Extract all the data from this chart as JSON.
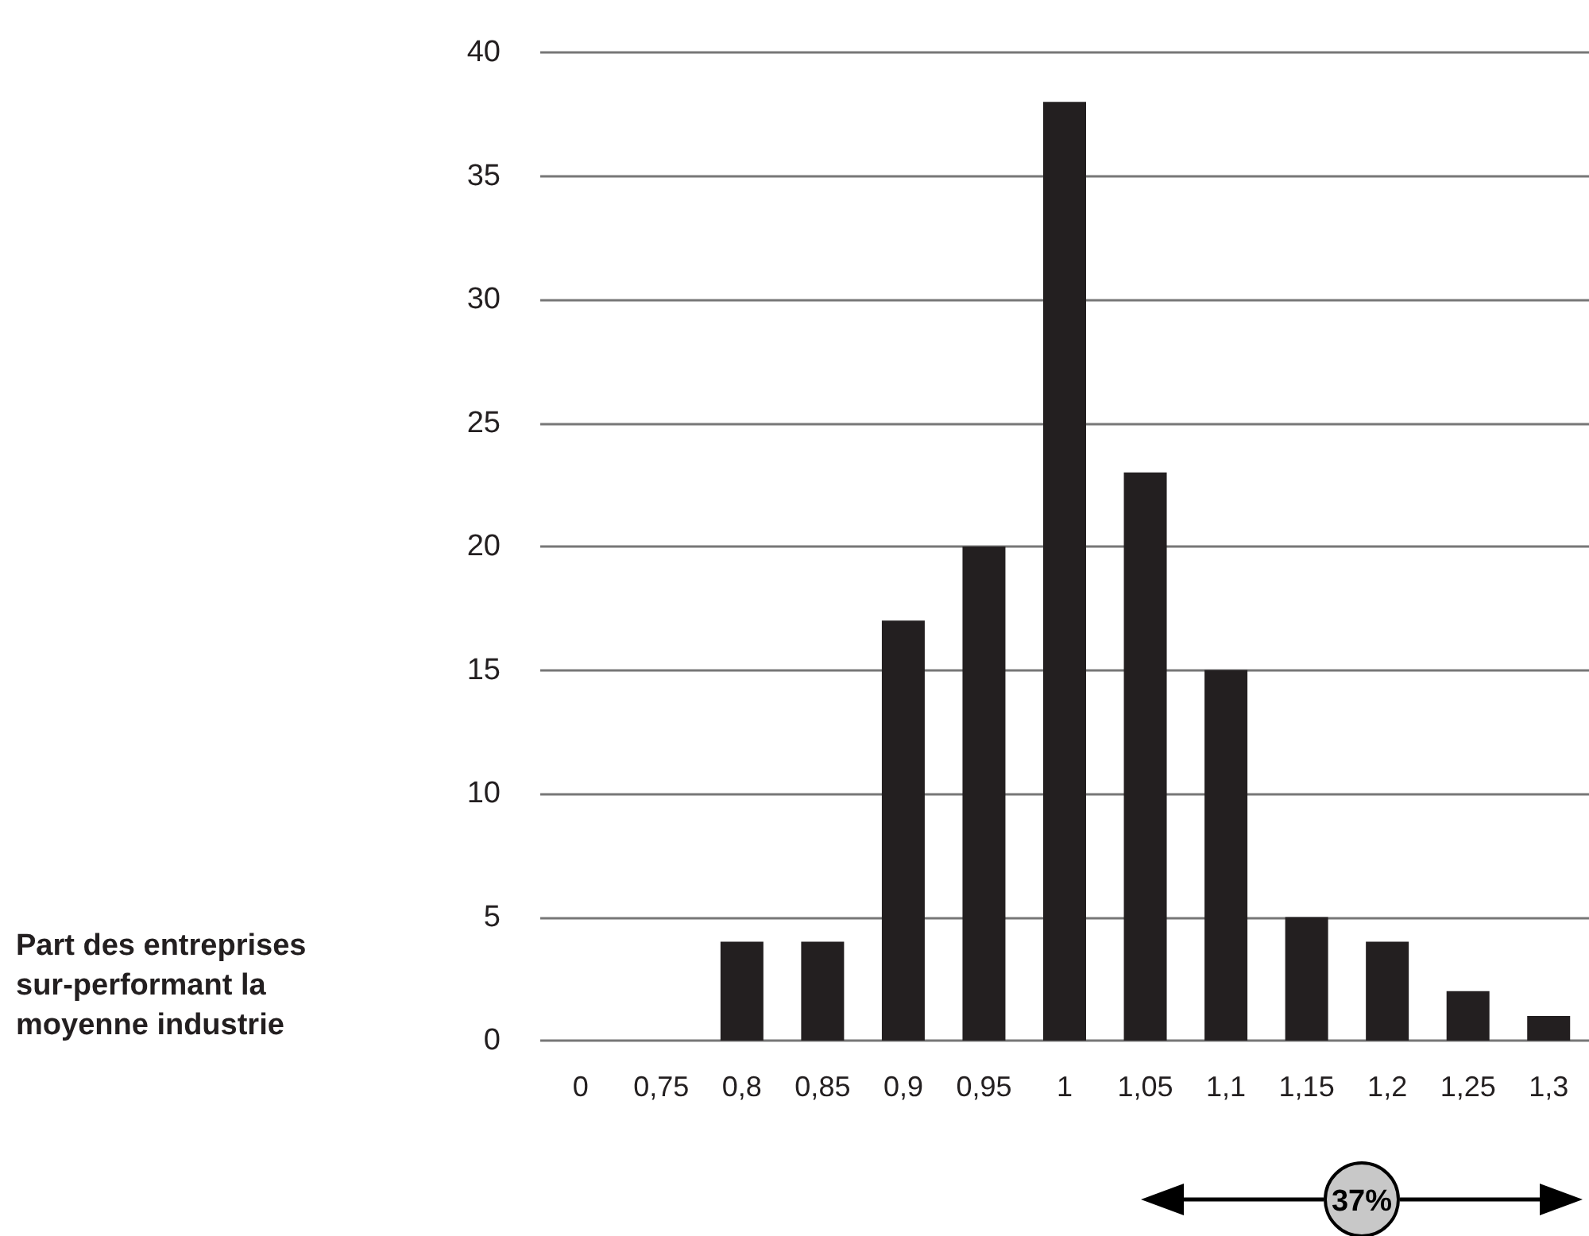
{
  "chart_data": {
    "type": "bar",
    "categories": [
      "0",
      "0,75",
      "0,8",
      "0,85",
      "0,9",
      "0,95",
      "1",
      "1,05",
      "1,1",
      "1,15",
      "1,2",
      "1,25",
      "1,3"
    ],
    "values": [
      0,
      0,
      4,
      4,
      17,
      20,
      38,
      23,
      15,
      5,
      4,
      2,
      1
    ],
    "color": "#231f20",
    "ylim": [
      0,
      40
    ],
    "yticks": [
      0,
      5,
      10,
      15,
      20,
      25,
      30,
      35,
      40
    ],
    "grid": "y",
    "annotations": [
      "Part des entreprises sur-performant la moyenne industrie",
      "37%"
    ]
  }
}
